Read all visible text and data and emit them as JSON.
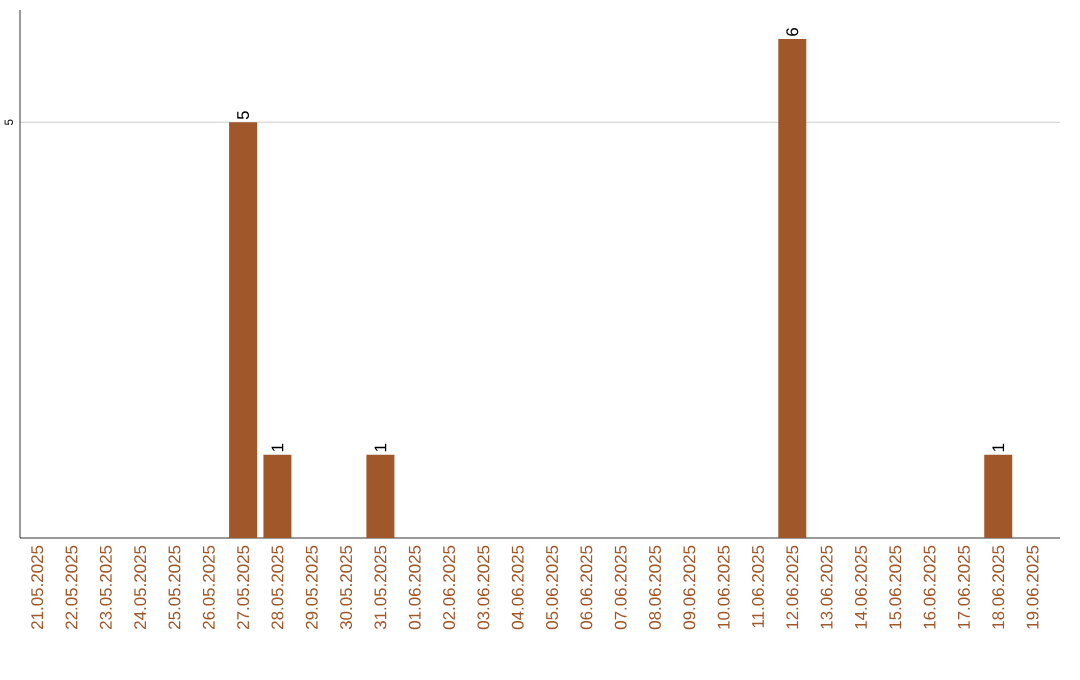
{
  "chart_data": {
    "type": "bar",
    "categories": [
      "21.05.2025",
      "22.05.2025",
      "23.05.2025",
      "24.05.2025",
      "25.05.2025",
      "26.05.2025",
      "27.05.2025",
      "28.05.2025",
      "29.05.2025",
      "30.05.2025",
      "31.05.2025",
      "01.06.2025",
      "02.06.2025",
      "03.06.2025",
      "04.06.2025",
      "05.06.2025",
      "06.06.2025",
      "07.06.2025",
      "08.06.2025",
      "09.06.2025",
      "10.06.2025",
      "11.06.2025",
      "12.06.2025",
      "13.06.2025",
      "14.06.2025",
      "15.06.2025",
      "16.06.2025",
      "17.06.2025",
      "18.06.2025",
      "19.06.2025"
    ],
    "values": [
      0,
      0,
      0,
      0,
      0,
      0,
      5,
      1,
      0,
      0,
      1,
      0,
      0,
      0,
      0,
      0,
      0,
      0,
      0,
      0,
      0,
      0,
      6,
      0,
      0,
      0,
      0,
      0,
      1,
      0
    ],
    "value_labels": [
      null,
      null,
      null,
      null,
      null,
      null,
      "5",
      "1",
      null,
      null,
      "1",
      null,
      null,
      null,
      null,
      null,
      null,
      null,
      null,
      null,
      null,
      null,
      "6",
      null,
      null,
      null,
      null,
      null,
      "1",
      null
    ],
    "color": "#a0572a",
    "ylim": [
      0,
      6.35
    ],
    "yticks": [
      5
    ],
    "grid": "y"
  }
}
